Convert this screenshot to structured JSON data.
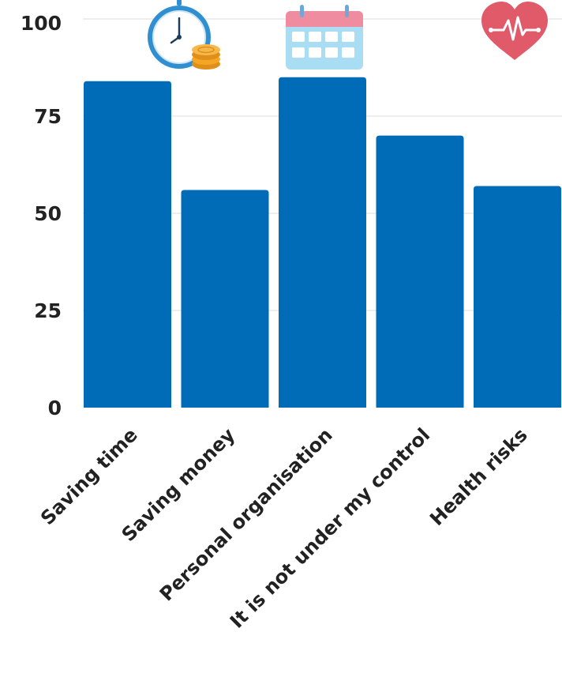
{
  "chart_data": {
    "type": "bar",
    "categories": [
      "Saving time",
      "Saving money",
      "Personal organisation",
      "It is not under my control",
      "Health risks"
    ],
    "values": [
      84,
      56,
      85,
      70,
      57
    ],
    "ylim": [
      0,
      100
    ],
    "yticks": [
      "0",
      "25",
      "50",
      "75",
      "100"
    ],
    "grid": true,
    "title": "",
    "xlabel": "",
    "ylabel": "",
    "bar_color": "#006bb6",
    "icons": [
      {
        "category": "Saving time",
        "name": "clock-coins-icon"
      },
      {
        "category": "Personal organisation",
        "name": "calendar-icon"
      },
      {
        "category": "Health risks",
        "name": "heart-pulse-icon"
      }
    ],
    "icon_colors": {
      "clock_face": "#2f8fd0",
      "coins": "#f5a623",
      "calendar_top": "#f08ca0",
      "calendar_body": "#a9ddf3",
      "heart": "#e05a6a"
    }
  }
}
